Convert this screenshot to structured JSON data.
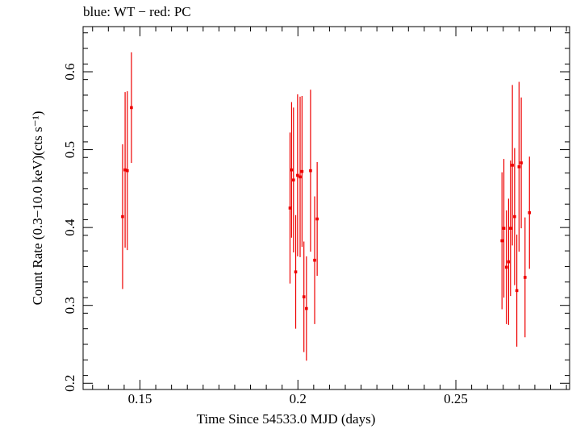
{
  "chart_data": {
    "type": "scatter",
    "title": "blue: WT − red: PC",
    "xlabel": "Time Since 54533.0 MJD (days)",
    "ylabel": "Count Rate (0.3−10.0 keV)(cts s⁻¹)",
    "xlim": [
      0.132,
      0.286
    ],
    "ylim": [
      0.192,
      0.658
    ],
    "x_major_ticks": [
      0.15,
      0.2,
      0.25
    ],
    "x_tick_labels": [
      "0.15",
      "0.2",
      "0.25"
    ],
    "y_major_ticks": [
      0.2,
      0.3,
      0.4,
      0.5,
      0.6
    ],
    "y_tick_labels": [
      "0.2",
      "0.3",
      "0.4",
      "0.5",
      "0.6"
    ],
    "grid": false,
    "series": [
      {
        "name": "PC",
        "color": "#ee0000",
        "points": [
          {
            "x": 0.1445,
            "y": 0.414,
            "err": 0.093
          },
          {
            "x": 0.1453,
            "y": 0.474,
            "err": 0.1
          },
          {
            "x": 0.146,
            "y": 0.473,
            "err": 0.102
          },
          {
            "x": 0.1473,
            "y": 0.554,
            "err": 0.071
          },
          {
            "x": 0.1975,
            "y": 0.425,
            "err": 0.097
          },
          {
            "x": 0.198,
            "y": 0.474,
            "err": 0.087
          },
          {
            "x": 0.1986,
            "y": 0.461,
            "err": 0.093
          },
          {
            "x": 0.1993,
            "y": 0.343,
            "err": 0.073
          },
          {
            "x": 0.1999,
            "y": 0.467,
            "err": 0.104
          },
          {
            "x": 0.2007,
            "y": 0.465,
            "err": 0.103
          },
          {
            "x": 0.2013,
            "y": 0.472,
            "err": 0.097
          },
          {
            "x": 0.2019,
            "y": 0.311,
            "err": 0.071
          },
          {
            "x": 0.2027,
            "y": 0.296,
            "err": 0.067
          },
          {
            "x": 0.204,
            "y": 0.473,
            "err": 0.104
          },
          {
            "x": 0.2053,
            "y": 0.358,
            "err": 0.082
          },
          {
            "x": 0.2061,
            "y": 0.411,
            "err": 0.073
          },
          {
            "x": 0.2646,
            "y": 0.383,
            "err": 0.088
          },
          {
            "x": 0.2652,
            "y": 0.399,
            "err": 0.089
          },
          {
            "x": 0.266,
            "y": 0.349,
            "err": 0.073
          },
          {
            "x": 0.2667,
            "y": 0.356,
            "err": 0.081
          },
          {
            "x": 0.2673,
            "y": 0.399,
            "err": 0.087
          },
          {
            "x": 0.2679,
            "y": 0.48,
            "err": 0.103
          },
          {
            "x": 0.2686,
            "y": 0.414,
            "err": 0.088
          },
          {
            "x": 0.2693,
            "y": 0.319,
            "err": 0.072
          },
          {
            "x": 0.27,
            "y": 0.478,
            "err": 0.109
          },
          {
            "x": 0.2707,
            "y": 0.483,
            "err": 0.084
          },
          {
            "x": 0.2719,
            "y": 0.336,
            "err": 0.077
          },
          {
            "x": 0.2733,
            "y": 0.419,
            "err": 0.072
          }
        ]
      }
    ]
  }
}
